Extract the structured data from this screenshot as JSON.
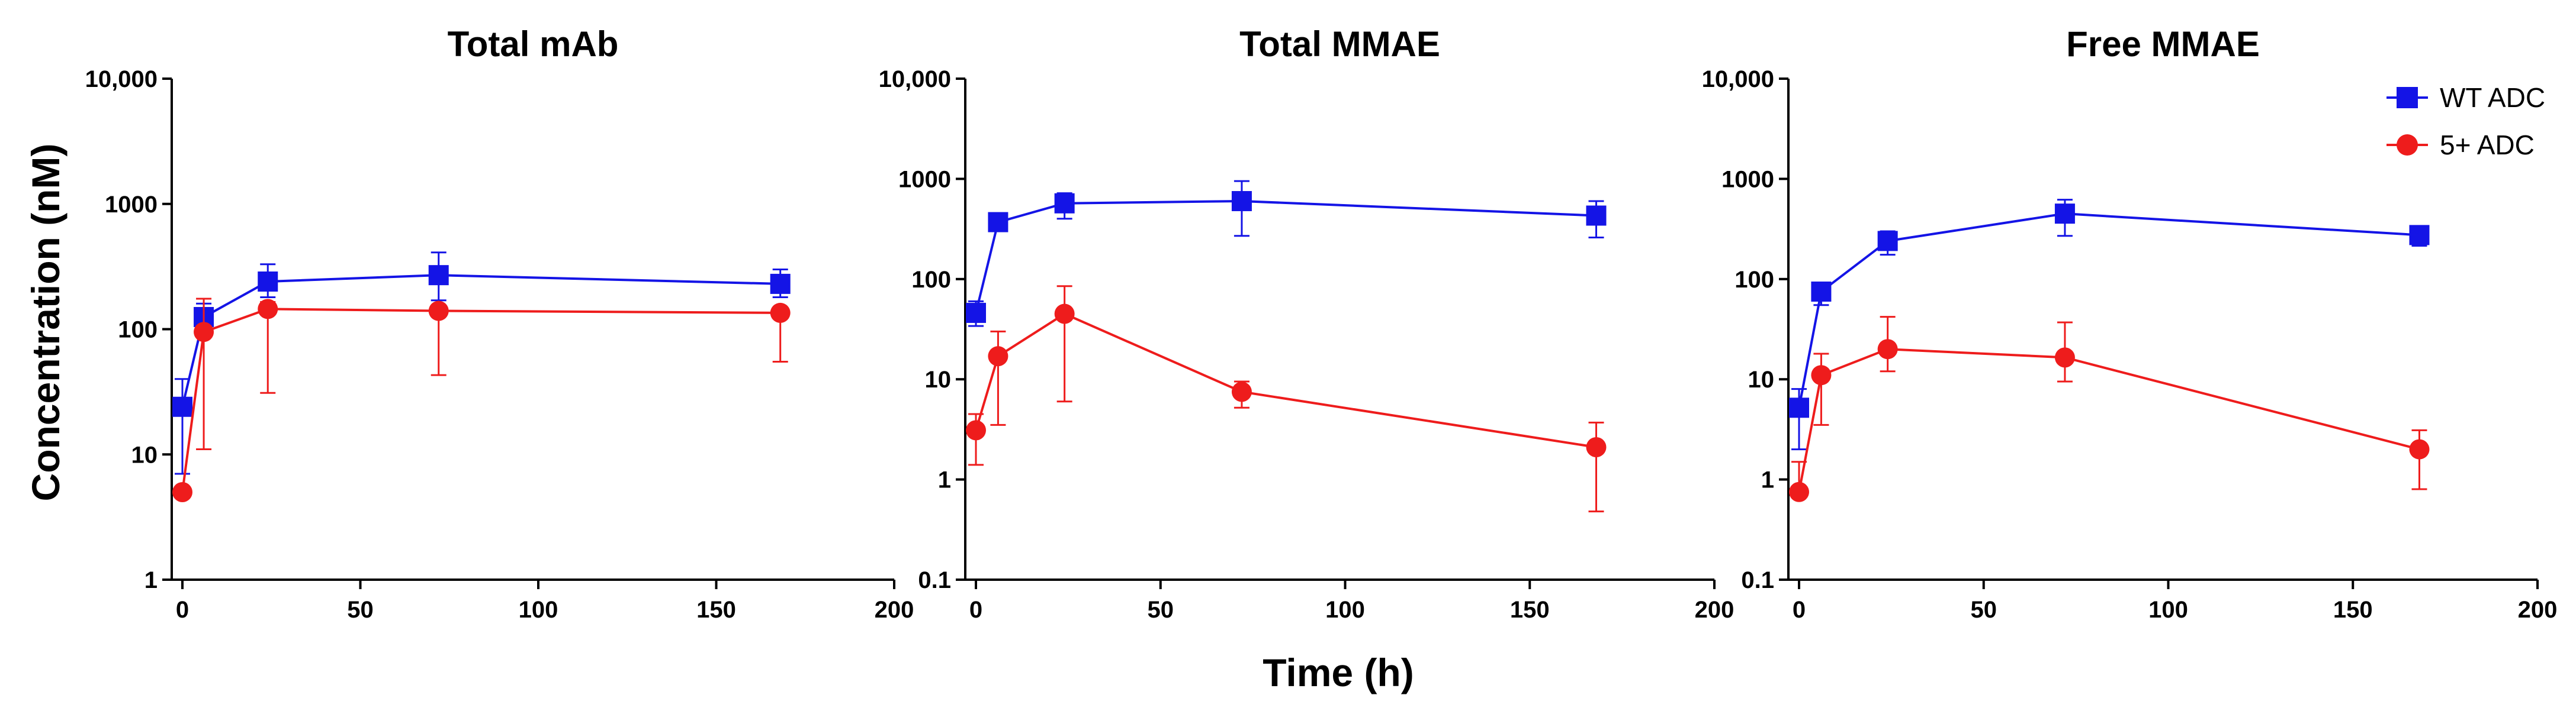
{
  "figure": {
    "shared_ylabel": "Concentration (nM)",
    "shared_xlabel": "Time (h)"
  },
  "legend": {
    "placement": "top-right",
    "entries": [
      {
        "name": "WT ADC",
        "color": "#1414e6",
        "marker": "square"
      },
      {
        "name": "5+ ADC",
        "color": "#ee1c1c",
        "marker": "circle"
      }
    ]
  },
  "chart_data": [
    {
      "type": "line",
      "title": "Total mAb",
      "xlabel": "",
      "ylabel": "Concentration (nM)",
      "yscale": "log",
      "xlim": [
        0,
        200
      ],
      "ylim": [
        1,
        10000
      ],
      "xticks": [
        "0",
        "50",
        "100",
        "150",
        "200"
      ],
      "yticks": [
        "1",
        "10",
        "100",
        "1000",
        "10,000"
      ],
      "grid": false,
      "series": [
        {
          "name": "WT ADC",
          "color": "#1414e6",
          "marker": "square",
          "x": [
            0,
            6,
            24,
            72,
            168
          ],
          "y": [
            24,
            125,
            240,
            270,
            230
          ],
          "err_low": [
            7,
            95,
            180,
            170,
            180
          ],
          "err_high": [
            40,
            160,
            330,
            410,
            300
          ]
        },
        {
          "name": "5+ ADC",
          "color": "#ee1c1c",
          "marker": "circle",
          "x": [
            0,
            6,
            24,
            72,
            168
          ],
          "y": [
            5,
            95,
            145,
            140,
            135
          ],
          "err_low": [
            null,
            11,
            31,
            43,
            55
          ],
          "err_high": [
            null,
            175,
            165,
            155,
            145
          ]
        }
      ]
    },
    {
      "type": "line",
      "title": "Total MMAE",
      "xlabel": "Time (h)",
      "ylabel": "",
      "yscale": "log",
      "xlim": [
        0,
        200
      ],
      "ylim": [
        0.1,
        10000
      ],
      "xticks": [
        "0",
        "50",
        "100",
        "150",
        "200"
      ],
      "yticks": [
        "0.1",
        "1",
        "10",
        "100",
        "1000",
        "10,000"
      ],
      "grid": false,
      "series": [
        {
          "name": "WT ADC",
          "color": "#1414e6",
          "marker": "square",
          "x": [
            0,
            6,
            24,
            72,
            168
          ],
          "y": [
            46,
            370,
            570,
            600,
            430
          ],
          "err_low": [
            34,
            330,
            400,
            270,
            260
          ],
          "err_high": [
            60,
            420,
            720,
            950,
            600
          ]
        },
        {
          "name": "5+ ADC",
          "color": "#ee1c1c",
          "marker": "circle",
          "x": [
            0,
            6,
            24,
            72,
            168
          ],
          "y": [
            3.1,
            17,
            45,
            7.5,
            2.1
          ],
          "err_low": [
            1.4,
            3.5,
            6,
            5.2,
            0.48
          ],
          "err_high": [
            4.5,
            30,
            85,
            9.5,
            3.7
          ]
        }
      ]
    },
    {
      "type": "line",
      "title": "Free MMAE",
      "xlabel": "",
      "ylabel": "",
      "yscale": "log",
      "xlim": [
        0,
        200
      ],
      "ylim": [
        0.1,
        10000
      ],
      "xticks": [
        "0",
        "50",
        "100",
        "150",
        "200"
      ],
      "yticks": [
        "0.1",
        "1",
        "10",
        "100",
        "1000",
        "10,000"
      ],
      "grid": false,
      "series": [
        {
          "name": "WT ADC",
          "color": "#1414e6",
          "marker": "square",
          "x": [
            0,
            6,
            24,
            72,
            168
          ],
          "y": [
            5.2,
            75,
            240,
            450,
            275
          ],
          "err_low": [
            2,
            55,
            175,
            270,
            215
          ],
          "err_high": [
            8,
            90,
            300,
            620,
            330
          ]
        },
        {
          "name": "5+ ADC",
          "color": "#ee1c1c",
          "marker": "circle",
          "x": [
            0,
            6,
            24,
            72,
            168
          ],
          "y": [
            0.75,
            11,
            20,
            16.5,
            2
          ],
          "err_low": [
            null,
            3.5,
            12,
            9.5,
            0.8
          ],
          "err_high": [
            1.5,
            18,
            42,
            37,
            3.1
          ]
        }
      ]
    }
  ]
}
